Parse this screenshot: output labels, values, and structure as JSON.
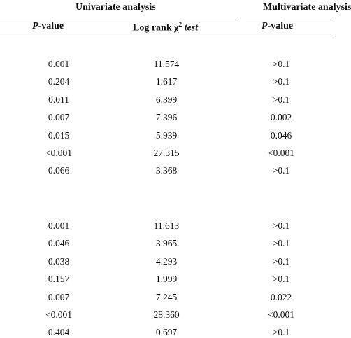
{
  "groups": {
    "univariate": "Univariate analysis",
    "multivariate": "Multivariate analysis"
  },
  "headers": {
    "p_value_italic": "P",
    "p_value_rest": "-value",
    "log_rank_prefix": "Log rank χ",
    "log_rank_sup": "2",
    "log_rank_suffix": "test",
    "p_value2_italic": "P",
    "p_value2_rest": "-value"
  },
  "sections": [
    {
      "rows": [
        {
          "p": "0.001",
          "chi": "11.574",
          "mp": ">0.1"
        },
        {
          "p": "0.204",
          "chi": "1.617",
          "mp": ">0.1"
        },
        {
          "p": "0.011",
          "chi": "6.399",
          "mp": ">0.1"
        },
        {
          "p": "0.007",
          "chi": "7.396",
          "mp": "0.002"
        },
        {
          "p": "0.015",
          "chi": "5.939",
          "mp": "0.046"
        },
        {
          "p": "<0.001",
          "chi": "27.315",
          "mp": "<0.001"
        },
        {
          "p": "0.066",
          "chi": "3.368",
          "mp": ">0.1"
        }
      ]
    },
    {
      "rows": [
        {
          "p": "0.001",
          "chi": "11.613",
          "mp": ">0.1"
        },
        {
          "p": "0.046",
          "chi": "3.965",
          "mp": ">0.1"
        },
        {
          "p": "0.038",
          "chi": "4.293",
          "mp": ">0.1"
        },
        {
          "p": "0.157",
          "chi": "1.999",
          "mp": ">0.1"
        },
        {
          "p": "0.007",
          "chi": "7.245",
          "mp": "0.022"
        },
        {
          "p": "<0.001",
          "chi": "28.360",
          "mp": "<0.001"
        },
        {
          "p": "0.404",
          "chi": "0.697",
          "mp": ">0.1"
        }
      ]
    }
  ]
}
